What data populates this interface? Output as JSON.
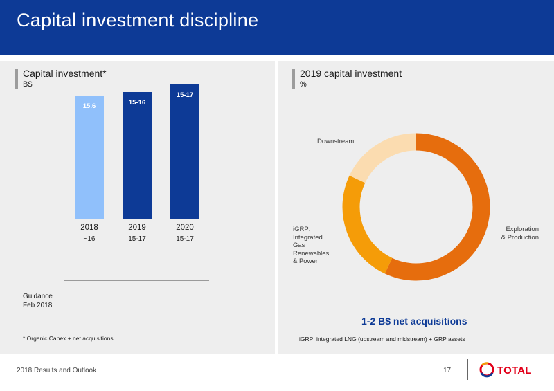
{
  "header": {
    "title": "Capital investment discipline"
  },
  "left_panel": {
    "title": "Capital investment*",
    "unit": "B$",
    "guidance_label_line1": "Guidance",
    "guidance_label_line2": "Feb 2018",
    "footnote": "* Organic Capex + net acquisitions"
  },
  "right_panel": {
    "title": "2019 capital investment",
    "unit": "%",
    "net_acquisitions": "1-2 B$ net acquisitions",
    "footnote": "iGRP: integrated LNG (upstream and midstream) + GRP assets",
    "labels": {
      "downstream": "Downstream",
      "igrp_lines": [
        "iGRP:",
        "Integrated",
        "Gas",
        "Renewables",
        "& Power"
      ],
      "ep_lines": [
        "Exploration",
        "& Production"
      ]
    }
  },
  "chart_data": [
    {
      "type": "bar",
      "title": "Capital investment*",
      "ylabel": "B$",
      "categories": [
        "2018",
        "2019",
        "2020"
      ],
      "values": [
        15.6,
        16,
        17
      ],
      "bar_labels": [
        "15.6",
        "15-16",
        "15-17"
      ],
      "ranges": [
        null,
        [
          15,
          16
        ],
        [
          15,
          17
        ]
      ],
      "guidance": [
        "~16",
        "15-17",
        "15-17"
      ],
      "colors": [
        "#90c0fb",
        "#0d3a96",
        "#0d3a96"
      ]
    },
    {
      "type": "pie",
      "title": "2019 capital investment",
      "ylabel": "%",
      "categories": [
        "Exploration & Production",
        "iGRP",
        "Downstream"
      ],
      "values": [
        57,
        25,
        18
      ],
      "colors": [
        "#e66d0d",
        "#f59c08",
        "#fbdcb0"
      ]
    }
  ],
  "footer": {
    "text": "2018 Results and Outlook",
    "page": "17",
    "logo": "TOTAL"
  }
}
